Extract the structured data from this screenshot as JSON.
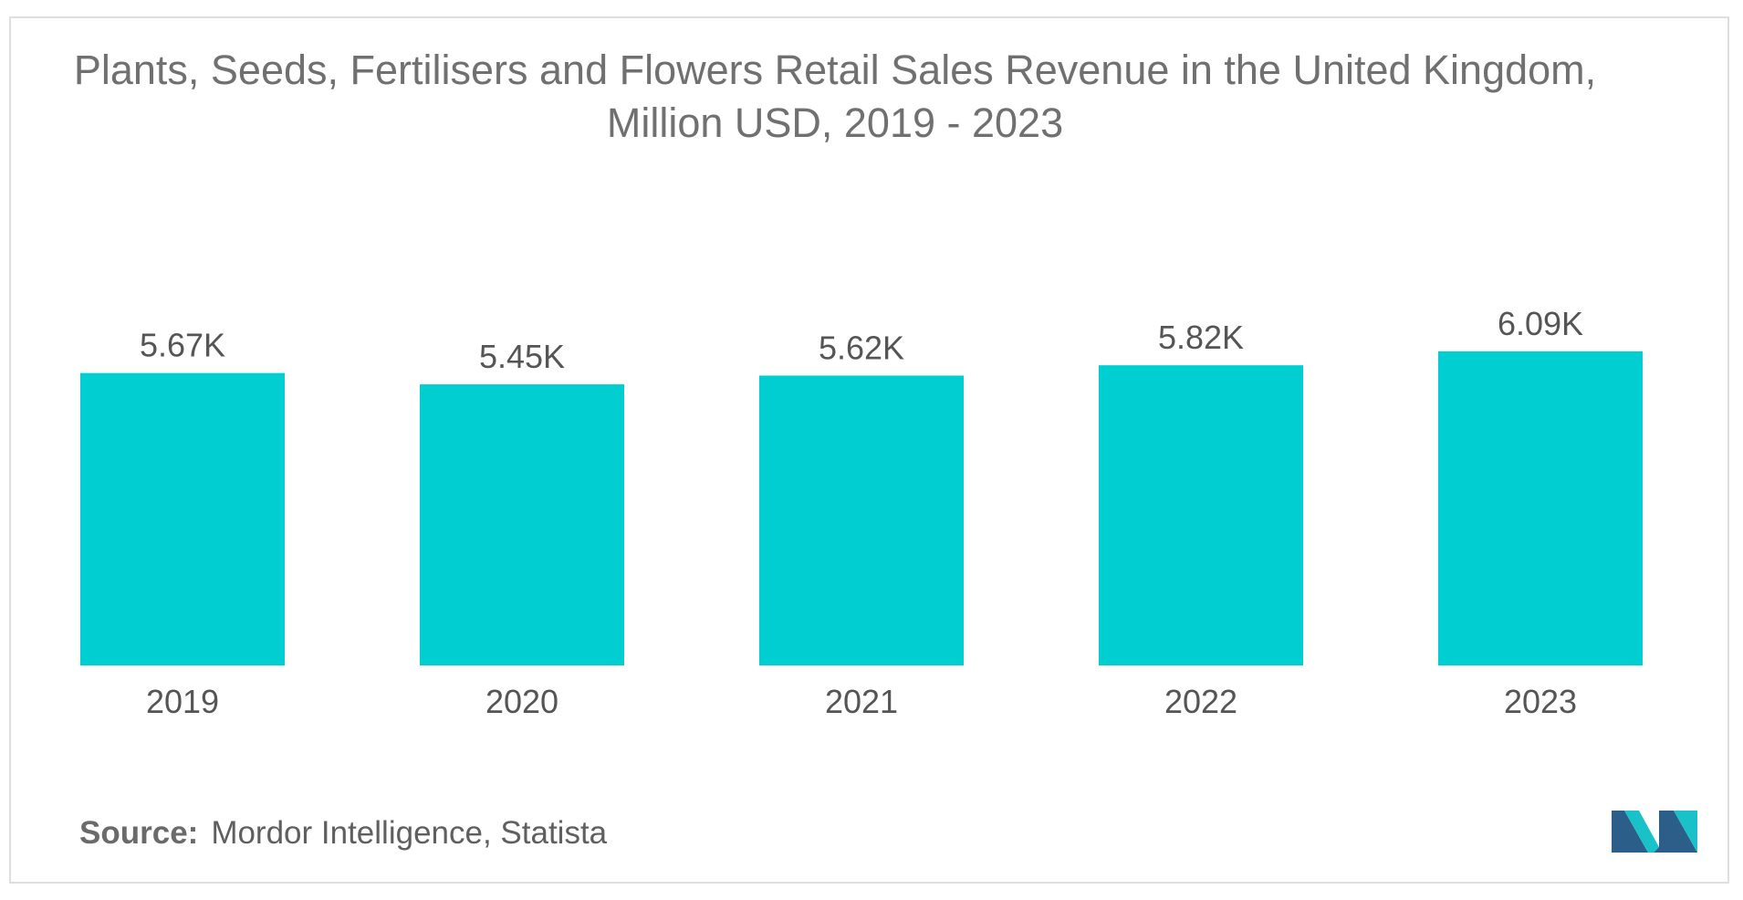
{
  "chart_data": {
    "type": "bar",
    "title": "Plants, Seeds, Fertilisers and Flowers Retail Sales Revenue in the United Kingdom, Million USD, 2019 - 2023",
    "categories": [
      "2019",
      "2020",
      "2021",
      "2022",
      "2023"
    ],
    "values": [
      5670,
      5450,
      5620,
      5820,
      6090
    ],
    "data_labels": [
      "5.67K",
      "5.45K",
      "5.62K",
      "5.82K",
      "6.09K"
    ],
    "bar_color": "#00ced1",
    "grid": false,
    "legend": "none"
  },
  "source": {
    "label": "Source:",
    "text": "Mordor Intelligence, Statista"
  },
  "logo": {
    "icon": "mordor-intelligence-logo",
    "colors": [
      "#2b5f8a",
      "#19c2c9"
    ]
  }
}
